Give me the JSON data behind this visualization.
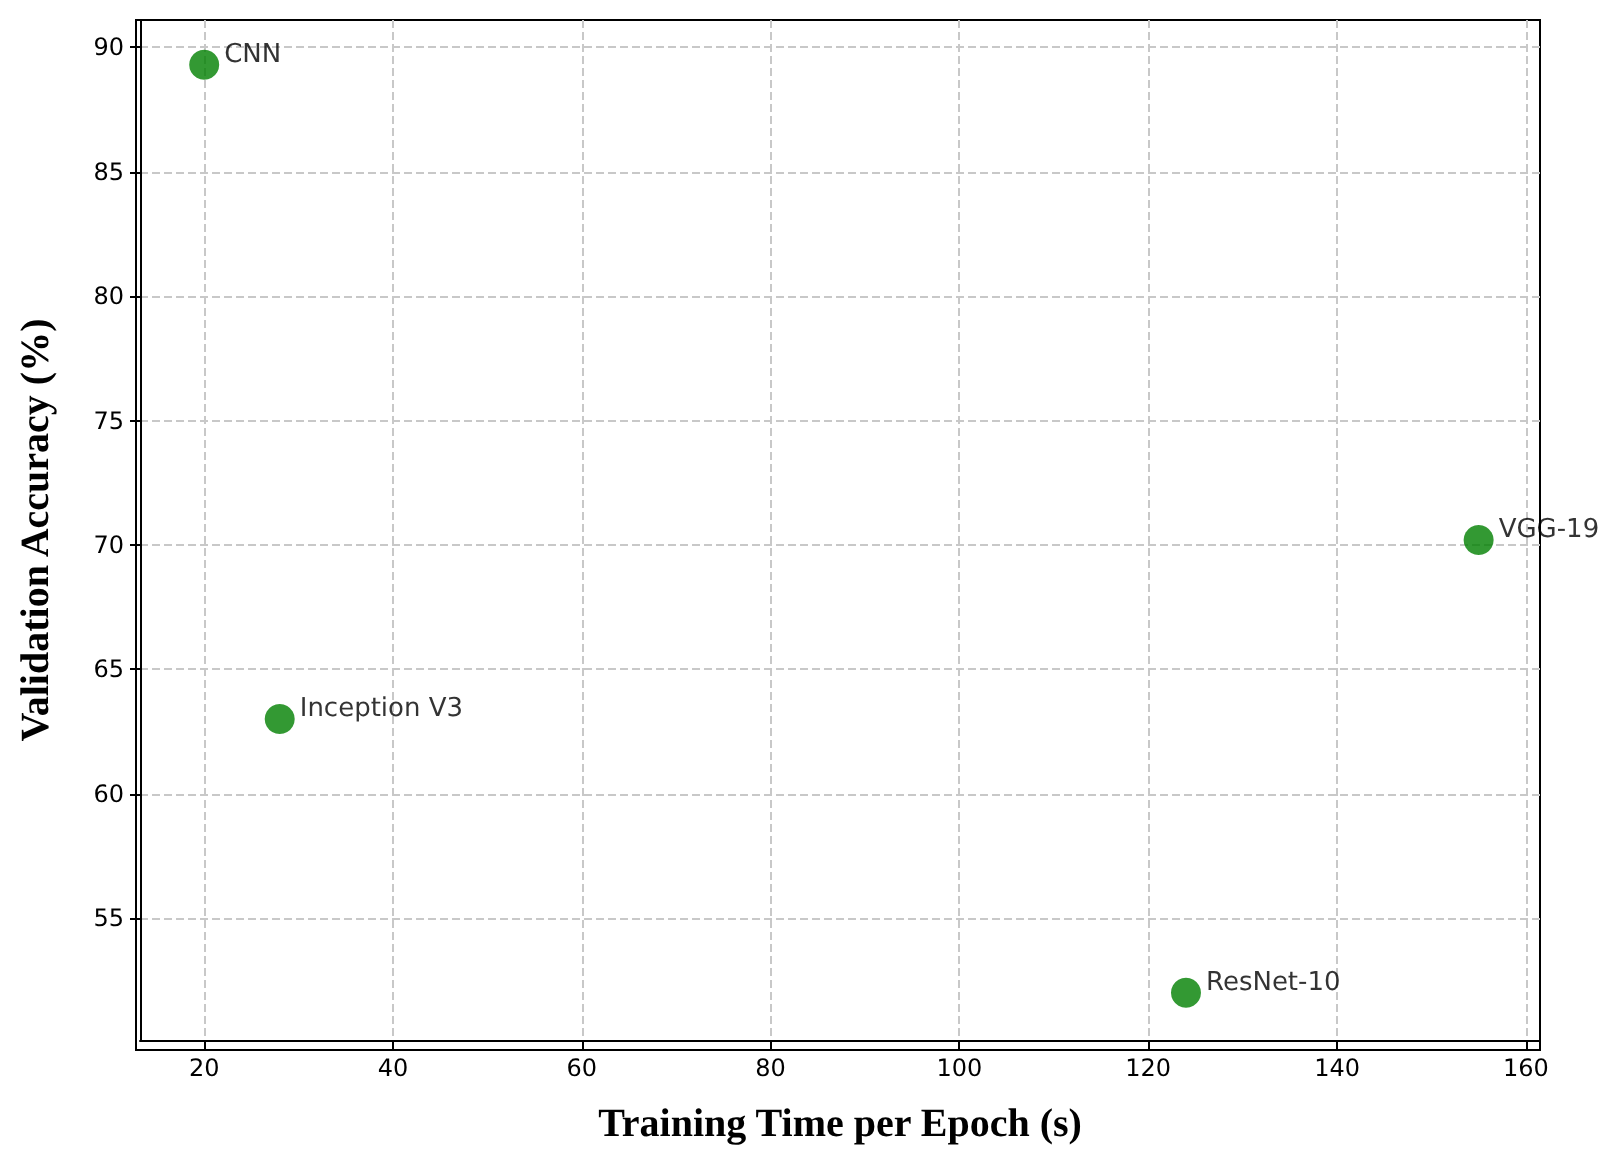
{
  "chart_data": {
    "type": "scatter",
    "xlabel": "Training Time per Epoch (s)",
    "ylabel": "Validation Accuracy (%)",
    "x": [
      20,
      28,
      124,
      155
    ],
    "values": [
      89.3,
      63.0,
      52.0,
      70.2
    ],
    "color": "#008000",
    "marker": "circle",
    "xlim": [
      13.2,
      161.5
    ],
    "xticks": [
      20,
      40,
      60,
      80,
      100,
      120,
      140,
      160
    ],
    "ylim": [
      50.1,
      91.1
    ],
    "yticks": [
      55,
      60,
      65,
      70,
      75,
      80,
      85,
      90
    ],
    "grid": true,
    "annotations": [
      {
        "text": "CNN",
        "x": 20,
        "y": 89.3
      },
      {
        "text": "Inception V3",
        "x": 28,
        "y": 63.0
      },
      {
        "text": "ResNet-10",
        "x": 124,
        "y": 52.0
      },
      {
        "text": "VGG-19",
        "x": 155,
        "y": 70.2
      }
    ]
  }
}
